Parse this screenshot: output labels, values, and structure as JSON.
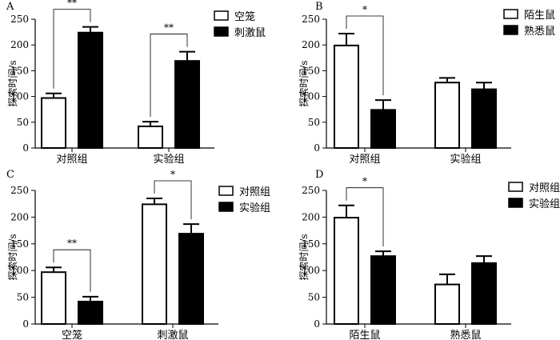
{
  "chart_data": [
    {
      "type": "bar",
      "panel_label": "A",
      "categories": [
        "对照组",
        "实验组"
      ],
      "series": [
        {
          "name": "空笼",
          "values": [
            97,
            42
          ],
          "errors": [
            9,
            9
          ],
          "fill": "#ffffff"
        },
        {
          "name": "刺激鼠",
          "values": [
            224,
            169
          ],
          "errors": [
            11,
            18
          ],
          "fill": "#000000"
        }
      ],
      "ylabel": "探索时间/s",
      "ylim": [
        0,
        250
      ],
      "yticks": [
        0,
        50,
        100,
        150,
        200,
        250
      ],
      "legend_position": "top-right",
      "significance": [
        {
          "category_index": 0,
          "from_series": 0,
          "to_series": 1,
          "label": "**"
        },
        {
          "category_index": 1,
          "from_series": 0,
          "to_series": 1,
          "label": "**"
        }
      ]
    },
    {
      "type": "bar",
      "panel_label": "B",
      "categories": [
        "对照组",
        "实验组"
      ],
      "series": [
        {
          "name": "陌生鼠",
          "values": [
            199,
            127
          ],
          "errors": [
            23,
            9
          ],
          "fill": "#ffffff"
        },
        {
          "name": "熟悉鼠",
          "values": [
            74,
            114
          ],
          "errors": [
            19,
            13
          ],
          "fill": "#000000"
        }
      ],
      "ylabel": "探索时间/s",
      "ylim": [
        0,
        250
      ],
      "yticks": [
        0,
        50,
        100,
        150,
        200,
        250
      ],
      "legend_position": "top-right",
      "significance": [
        {
          "category_index": 0,
          "from_series": 0,
          "to_series": 1,
          "label": "*"
        }
      ]
    },
    {
      "type": "bar",
      "panel_label": "C",
      "categories": [
        "空笼",
        "刺激鼠"
      ],
      "series": [
        {
          "name": "对照组",
          "values": [
            97,
            224
          ],
          "errors": [
            9,
            11
          ],
          "fill": "#ffffff"
        },
        {
          "name": "实验组",
          "values": [
            42,
            169
          ],
          "errors": [
            9,
            18
          ],
          "fill": "#000000"
        }
      ],
      "ylabel": "探索时间/s",
      "ylim": [
        0,
        250
      ],
      "yticks": [
        0,
        50,
        100,
        150,
        200,
        250
      ],
      "legend_position": "top-right",
      "significance": [
        {
          "category_index": 0,
          "from_series": 0,
          "to_series": 1,
          "label": "**"
        },
        {
          "category_index": 1,
          "from_series": 0,
          "to_series": 1,
          "label": "*"
        }
      ]
    },
    {
      "type": "bar",
      "panel_label": "D",
      "categories": [
        "陌生鼠",
        "熟悉鼠"
      ],
      "series": [
        {
          "name": "对照组",
          "values": [
            199,
            74
          ],
          "errors": [
            23,
            19
          ],
          "fill": "#ffffff"
        },
        {
          "name": "实验组",
          "values": [
            127,
            114
          ],
          "errors": [
            9,
            13
          ],
          "fill": "#000000"
        }
      ],
      "ylabel": "探索时间/s",
      "ylim": [
        0,
        250
      ],
      "yticks": [
        0,
        50,
        100,
        150,
        200,
        250
      ],
      "legend_position": "top-right",
      "significance": [
        {
          "category_index": 0,
          "from_series": 0,
          "to_series": 1,
          "label": "*"
        }
      ]
    }
  ]
}
